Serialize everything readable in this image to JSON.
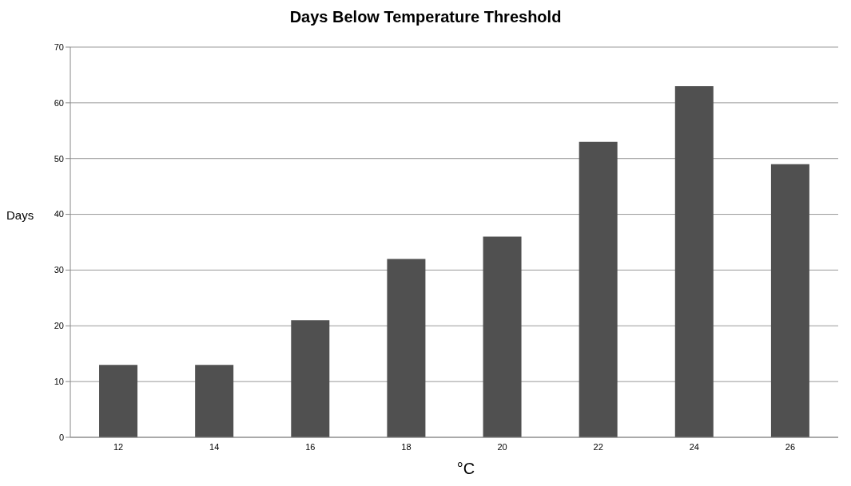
{
  "chart_data": {
    "type": "bar",
    "title": "Days Below Temperature Threshold",
    "xlabel": "°C",
    "ylabel": "Days",
    "categories": [
      "12",
      "14",
      "16",
      "18",
      "20",
      "22",
      "24",
      "26"
    ],
    "values": [
      13,
      13,
      21,
      32,
      36,
      53,
      63,
      49
    ],
    "color": "#505050",
    "ylim": [
      0,
      70
    ],
    "yticks": [
      0,
      10,
      20,
      30,
      40,
      50,
      60,
      70
    ],
    "grid": "y"
  }
}
